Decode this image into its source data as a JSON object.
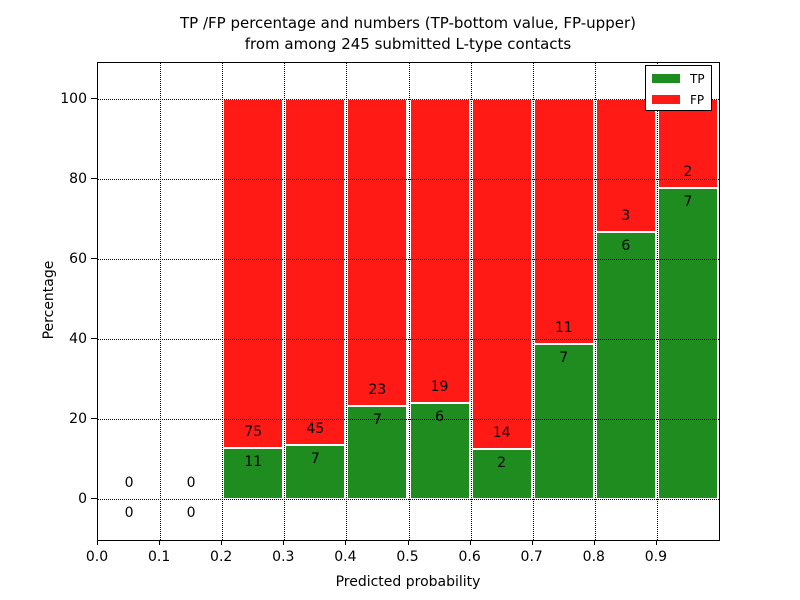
{
  "chart_data": {
    "type": "bar",
    "stacked": true,
    "orientation": "vertical",
    "title_line1": "TP /FP percentage and numbers (TP-bottom value, FP-upper)",
    "title_line2": "from among 245 submitted L-type contacts",
    "xlabel": "Predicted probability",
    "ylabel": "Percentage",
    "xlim": [
      0.0,
      1.0
    ],
    "ylim": [
      -10.2,
      109.0
    ],
    "grid": "dotted",
    "xtick_values": [
      0.0,
      0.1,
      0.2,
      0.3,
      0.4,
      0.5,
      0.6,
      0.7,
      0.8,
      0.9
    ],
    "xtick_labels": [
      "0.0",
      "0.1",
      "0.2",
      "0.3",
      "0.4",
      "0.5",
      "0.6",
      "0.7",
      "0.8",
      "0.9"
    ],
    "ytick_values": [
      0,
      20,
      40,
      60,
      80,
      100
    ],
    "ytick_labels": [
      "0",
      "20",
      "40",
      "60",
      "80",
      "100"
    ],
    "colors": {
      "tp": "#1f8c1f",
      "fp": "#ff1a15",
      "grid": "#000000",
      "frame": "#000000"
    },
    "legend": {
      "position": "upper right",
      "entries": [
        {
          "label": "TP",
          "color": "#1f8c1f"
        },
        {
          "label": "FP",
          "color": "#ff1a15"
        }
      ]
    },
    "total_contacts": 245,
    "annotation_note": "TP count below segment boundary, FP count above it",
    "bins": [
      {
        "range": [
          0.0,
          0.1
        ],
        "tp": 0,
        "fp": 0
      },
      {
        "range": [
          0.1,
          0.2
        ],
        "tp": 0,
        "fp": 0
      },
      {
        "range": [
          0.2,
          0.3
        ],
        "tp": 11,
        "fp": 75
      },
      {
        "range": [
          0.3,
          0.4
        ],
        "tp": 7,
        "fp": 45
      },
      {
        "range": [
          0.4,
          0.5
        ],
        "tp": 7,
        "fp": 23
      },
      {
        "range": [
          0.5,
          0.6
        ],
        "tp": 6,
        "fp": 19
      },
      {
        "range": [
          0.6,
          0.7
        ],
        "tp": 2,
        "fp": 14
      },
      {
        "range": [
          0.7,
          0.8
        ],
        "tp": 7,
        "fp": 11
      },
      {
        "range": [
          0.8,
          0.9
        ],
        "tp": 6,
        "fp": 3
      },
      {
        "range": [
          0.9,
          1.0
        ],
        "tp": 7,
        "fp": 2
      }
    ]
  }
}
